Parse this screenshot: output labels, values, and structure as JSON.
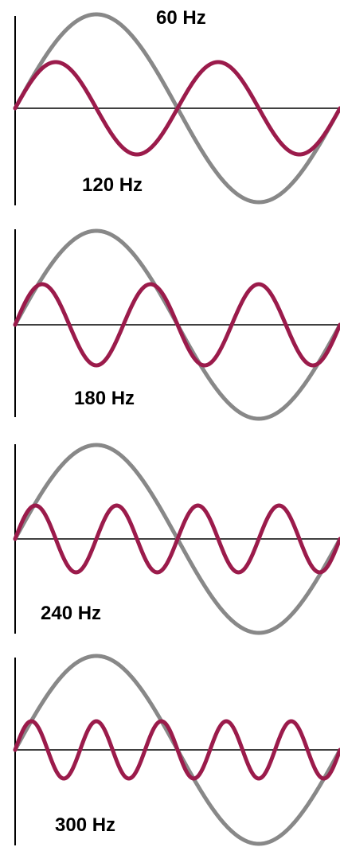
{
  "diagram": {
    "colors": {
      "background": "#ffffff",
      "fundamental_wave": "#888888",
      "harmonic_wave": "#9b1b4b",
      "axes": "#000000"
    },
    "fundamental": {
      "label": "60 Hz",
      "frequency_hz": 60,
      "cycles_shown": 1
    },
    "panels": [
      {
        "harmonic_label": "120 Hz",
        "harmonic_frequency_hz": 120,
        "harmonic_cycles_shown": 2
      },
      {
        "harmonic_label": "180 Hz",
        "harmonic_frequency_hz": 180,
        "harmonic_cycles_shown": 3
      },
      {
        "harmonic_label": "240 Hz",
        "harmonic_frequency_hz": 240,
        "harmonic_cycles_shown": 4
      },
      {
        "harmonic_label": "300 Hz",
        "harmonic_frequency_hz": 300,
        "harmonic_cycles_shown": 5
      }
    ]
  }
}
